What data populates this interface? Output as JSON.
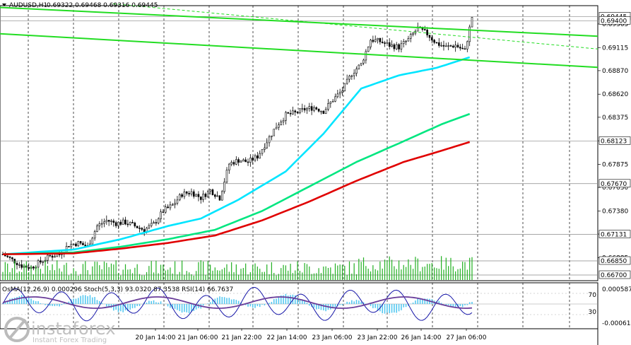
{
  "header": {
    "symbol": "AUDUSD,H1",
    "ohlc": "0.69322 0.69468 0.69316 0.69445"
  },
  "indicator_header": "OsMA(12,26,9) 0.000296 Stoch(5,3,3) 93.0320 87.3538 RSI(14) 66.7637",
  "watermark": {
    "brand": "instaforex",
    "tagline": "Instant Forex Trading"
  },
  "chart_data": {
    "type": "candlestick",
    "y_axis": {
      "min": 0.6664,
      "max": 0.6956,
      "ticks": [
        "0.69365",
        "0.69115",
        "0.68870",
        "0.68620",
        "0.68375",
        "0.68125",
        "0.67875",
        "0.67630",
        "0.67380",
        "0.67135",
        "0.66885"
      ],
      "highlighted_levels": [
        "0.69445",
        "0.69400",
        "0.68123",
        "0.67670",
        "0.67131",
        "0.66850",
        "0.66700"
      ]
    },
    "x_axis": {
      "tick_labels": [
        "20 Jan 14:00",
        "21 Jan 06:00",
        "21 Jan 22:00",
        "22 Jan 14:00",
        "23 Jan 06:00",
        "23 Jan 22:00",
        "26 Jan 14:00",
        "27 Jan 06:00"
      ]
    },
    "close_path": [
      [
        0,
        0.6692
      ],
      [
        4,
        0.6686
      ],
      [
        8,
        0.668
      ],
      [
        12,
        0.6678
      ],
      [
        16,
        0.6684
      ],
      [
        20,
        0.669
      ],
      [
        24,
        0.6692
      ],
      [
        28,
        0.6702
      ],
      [
        32,
        0.6704
      ],
      [
        36,
        0.67
      ],
      [
        40,
        0.6722
      ],
      [
        44,
        0.6728
      ],
      [
        48,
        0.6725
      ],
      [
        52,
        0.6726
      ],
      [
        56,
        0.6722
      ],
      [
        60,
        0.6718
      ],
      [
        64,
        0.6724
      ],
      [
        68,
        0.6738
      ],
      [
        72,
        0.6744
      ],
      [
        76,
        0.6756
      ],
      [
        80,
        0.6758
      ],
      [
        84,
        0.6752
      ],
      [
        88,
        0.676
      ],
      [
        92,
        0.6752
      ],
      [
        96,
        0.6788
      ],
      [
        100,
        0.6792
      ],
      [
        104,
        0.679
      ],
      [
        108,
        0.6796
      ],
      [
        112,
        0.6812
      ],
      [
        116,
        0.6828
      ],
      [
        120,
        0.684
      ],
      [
        124,
        0.6842
      ],
      [
        128,
        0.6846
      ],
      [
        132,
        0.6848
      ],
      [
        136,
        0.6844
      ],
      [
        140,
        0.6856
      ],
      [
        144,
        0.6866
      ],
      [
        148,
        0.6884
      ],
      [
        152,
        0.6894
      ],
      [
        156,
        0.692
      ],
      [
        160,
        0.6918
      ],
      [
        164,
        0.6914
      ],
      [
        168,
        0.6912
      ],
      [
        172,
        0.692
      ],
      [
        176,
        0.6932
      ],
      [
        180,
        0.6926
      ],
      [
        184,
        0.6916
      ],
      [
        188,
        0.6912
      ],
      [
        192,
        0.6914
      ],
      [
        196,
        0.6908
      ],
      [
        199,
        0.6944
      ]
    ],
    "moving_averages": [
      {
        "color": "#00e5ff",
        "points": [
          [
            0,
            0.6692
          ],
          [
            30,
            0.6697
          ],
          [
            50,
            0.6708
          ],
          [
            70,
            0.6722
          ],
          [
            84,
            0.673
          ],
          [
            100,
            0.675
          ],
          [
            120,
            0.678
          ],
          [
            136,
            0.682
          ],
          [
            152,
            0.6868
          ],
          [
            168,
            0.6882
          ],
          [
            184,
            0.689
          ],
          [
            199,
            0.6902
          ]
        ]
      },
      {
        "color": "#00e680",
        "points": [
          [
            0,
            0.6692
          ],
          [
            30,
            0.6694
          ],
          [
            50,
            0.67
          ],
          [
            70,
            0.6708
          ],
          [
            90,
            0.6718
          ],
          [
            110,
            0.6738
          ],
          [
            130,
            0.6764
          ],
          [
            150,
            0.679
          ],
          [
            170,
            0.6812
          ],
          [
            186,
            0.683
          ],
          [
            199,
            0.6842
          ]
        ]
      },
      {
        "color": "#e00000",
        "points": [
          [
            0,
            0.6692
          ],
          [
            30,
            0.6693
          ],
          [
            50,
            0.6698
          ],
          [
            70,
            0.6704
          ],
          [
            90,
            0.6712
          ],
          [
            110,
            0.6728
          ],
          [
            130,
            0.6748
          ],
          [
            150,
            0.677
          ],
          [
            170,
            0.679
          ],
          [
            186,
            0.6802
          ],
          [
            199,
            0.6812
          ]
        ]
      }
    ],
    "channel_lines": [
      {
        "color": "#22dd22",
        "points": [
          [
            0,
            0.6954
          ],
          [
            199,
            0.693
          ]
        ]
      },
      {
        "color": "#22dd22",
        "points": [
          [
            0,
            0.6926
          ],
          [
            199,
            0.6898
          ]
        ]
      }
    ],
    "osma": {
      "type": "histogram"
    },
    "stochastic": {
      "levels": [
        80,
        20
      ]
    },
    "rsi": {
      "levels": [
        70,
        30
      ]
    }
  },
  "colors": {
    "bull_body": "#ffffff",
    "bear_body": "#000000",
    "volume": "#22b022",
    "osma": "#55c8f0",
    "stoch_main": "#1515a8",
    "rsi": "#6a3d9a",
    "grid": "#000000"
  }
}
